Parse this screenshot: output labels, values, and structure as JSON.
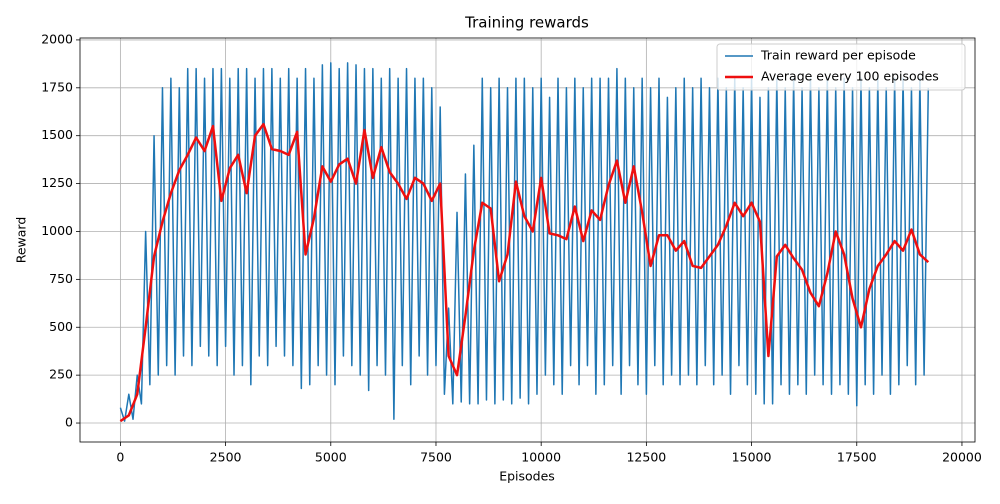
{
  "chart_data": {
    "type": "line",
    "title": "Training rewards",
    "xlabel": "Episodes",
    "ylabel": "Reward",
    "xlim": [
      -960,
      20310
    ],
    "ylim": [
      -99,
      2010
    ],
    "xticks": [
      0,
      2500,
      5000,
      7500,
      10000,
      12500,
      15000,
      17500,
      20000
    ],
    "yticks": [
      0,
      250,
      500,
      750,
      1000,
      1250,
      1500,
      1750,
      2000
    ],
    "grid": true,
    "legend": "upper right",
    "series": [
      {
        "name": "Train reward per episode",
        "color": "#1f77b4",
        "width": 1.5,
        "x": [
          0,
          100,
          200,
          300,
          400,
          500,
          600,
          700,
          800,
          900,
          1000,
          1100,
          1200,
          1300,
          1400,
          1500,
          1600,
          1700,
          1800,
          1900,
          2000,
          2100,
          2200,
          2300,
          2400,
          2500,
          2600,
          2700,
          2800,
          2900,
          3000,
          3100,
          3200,
          3300,
          3400,
          3500,
          3600,
          3700,
          3800,
          3900,
          4000,
          4100,
          4200,
          4300,
          4400,
          4500,
          4600,
          4700,
          4800,
          4900,
          5000,
          5100,
          5200,
          5300,
          5400,
          5500,
          5600,
          5700,
          5800,
          5900,
          6000,
          6100,
          6200,
          6300,
          6400,
          6500,
          6600,
          6700,
          6800,
          6900,
          7000,
          7100,
          7200,
          7300,
          7400,
          7500,
          7600,
          7700,
          7800,
          7900,
          8000,
          8100,
          8200,
          8300,
          8400,
          8500,
          8600,
          8700,
          8800,
          8900,
          9000,
          9100,
          9200,
          9300,
          9400,
          9500,
          9600,
          9700,
          9800,
          9900,
          10000,
          10100,
          10200,
          10300,
          10400,
          10500,
          10600,
          10700,
          10800,
          10900,
          11000,
          11100,
          11200,
          11300,
          11400,
          11500,
          11600,
          11700,
          11800,
          11900,
          12000,
          12100,
          12200,
          12300,
          12400,
          12500,
          12600,
          12700,
          12800,
          12900,
          13000,
          13100,
          13200,
          13300,
          13400,
          13500,
          13600,
          13700,
          13800,
          13900,
          14000,
          14100,
          14200,
          14300,
          14400,
          14500,
          14600,
          14700,
          14800,
          14900,
          15000,
          15100,
          15200,
          15300,
          15400,
          15500,
          15600,
          15700,
          15800,
          15900,
          16000,
          16100,
          16200,
          16300,
          16400,
          16500,
          16600,
          16700,
          16800,
          16900,
          17000,
          17100,
          17200,
          17300,
          17400,
          17500,
          17600,
          17700,
          17800,
          17900,
          18000,
          18100,
          18200,
          18300,
          18400,
          18500,
          18600,
          18700,
          18800,
          18900,
          19000,
          19100,
          19200
        ],
        "values": [
          80,
          10,
          150,
          20,
          250,
          100,
          1000,
          200,
          1500,
          250,
          1750,
          300,
          1800,
          250,
          1750,
          350,
          1850,
          300,
          1850,
          400,
          1800,
          350,
          1850,
          300,
          1850,
          400,
          1800,
          250,
          1850,
          300,
          1850,
          200,
          1800,
          350,
          1850,
          300,
          1850,
          400,
          1800,
          350,
          1850,
          300,
          1800,
          180,
          1850,
          200,
          1800,
          300,
          1870,
          250,
          1880,
          200,
          1850,
          350,
          1880,
          300,
          1870,
          250,
          1850,
          170,
          1850,
          300,
          1800,
          250,
          1850,
          20,
          1800,
          300,
          1850,
          200,
          1800,
          350,
          1800,
          250,
          1750,
          300,
          1650,
          150,
          600,
          100,
          1100,
          110,
          1300,
          100,
          1450,
          100,
          1800,
          120,
          1750,
          100,
          1800,
          120,
          1750,
          100,
          1800,
          130,
          1800,
          100,
          1750,
          150,
          1800,
          250,
          1700,
          200,
          1800,
          150,
          1750,
          300,
          1800,
          200,
          1750,
          300,
          1800,
          150,
          1800,
          200,
          1800,
          300,
          1850,
          150,
          1800,
          300,
          1750,
          200,
          1800,
          150,
          1750,
          300,
          1800,
          200,
          1700,
          250,
          1750,
          200,
          1800,
          250,
          1750,
          200,
          1800,
          300,
          1750,
          200,
          1800,
          250,
          1750,
          150,
          1800,
          300,
          1750,
          200,
          1800,
          150,
          1700,
          100,
          1750,
          100,
          1800,
          200,
          1750,
          150,
          1800,
          200,
          1750,
          150,
          1800,
          250,
          1750,
          200,
          1800,
          150,
          1750,
          200,
          1800,
          150,
          1750,
          90,
          1800,
          200,
          1750,
          150,
          1800,
          250,
          1750,
          150,
          1800,
          200,
          1800,
          300,
          1750,
          200,
          1800,
          250,
          1750
        ]
      },
      {
        "name": "Average every 100 episodes",
        "color": "#ee0f0f",
        "width": 2.5,
        "x": [
          0,
          200,
          400,
          600,
          800,
          1000,
          1200,
          1400,
          1600,
          1800,
          2000,
          2200,
          2400,
          2600,
          2800,
          3000,
          3200,
          3400,
          3600,
          3800,
          4000,
          4200,
          4400,
          4600,
          4800,
          5000,
          5200,
          5400,
          5600,
          5800,
          6000,
          6200,
          6400,
          6600,
          6800,
          7000,
          7200,
          7400,
          7600,
          7800,
          8000,
          8200,
          8400,
          8600,
          8800,
          9000,
          9200,
          9400,
          9600,
          9800,
          10000,
          10200,
          10400,
          10600,
          10800,
          11000,
          11200,
          11400,
          11600,
          11800,
          12000,
          12200,
          12400,
          12600,
          12800,
          13000,
          13200,
          13400,
          13600,
          13800,
          14000,
          14200,
          14400,
          14600,
          14800,
          15000,
          15200,
          15400,
          15600,
          15800,
          16000,
          16200,
          16400,
          16600,
          16800,
          17000,
          17200,
          17400,
          17600,
          17800,
          18000,
          18200,
          18400,
          18600,
          18800,
          19000,
          19200
        ],
        "values": [
          10,
          40,
          150,
          500,
          870,
          1050,
          1200,
          1320,
          1400,
          1490,
          1420,
          1550,
          1160,
          1330,
          1400,
          1200,
          1500,
          1560,
          1430,
          1420,
          1400,
          1520,
          880,
          1070,
          1340,
          1260,
          1350,
          1380,
          1250,
          1530,
          1280,
          1440,
          1310,
          1250,
          1170,
          1280,
          1250,
          1160,
          1250,
          350,
          250,
          560,
          900,
          1150,
          1120,
          740,
          880,
          1260,
          1080,
          1000,
          1280,
          990,
          980,
          960,
          1130,
          950,
          1110,
          1060,
          1240,
          1370,
          1150,
          1340,
          1100,
          820,
          980,
          980,
          900,
          950,
          820,
          810,
          870,
          930,
          1030,
          1150,
          1080,
          1150,
          1050,
          350,
          870,
          930,
          860,
          800,
          680,
          610,
          780,
          1000,
          880,
          650,
          500,
          700,
          820,
          880,
          950,
          900,
          1010,
          880,
          840
        ]
      }
    ]
  }
}
